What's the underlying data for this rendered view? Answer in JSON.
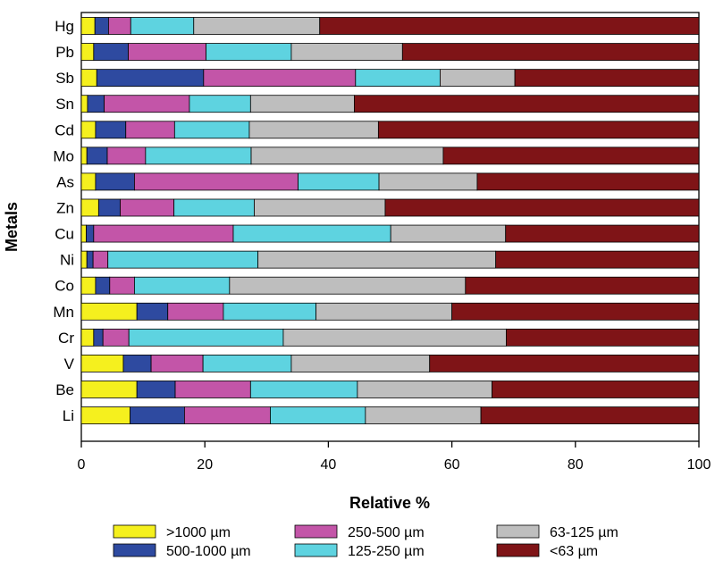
{
  "chart_data": {
    "type": "bar",
    "orientation": "horizontal",
    "stacked": true,
    "title": "",
    "xlabel": "Relative %",
    "ylabel": "Metals",
    "xlim": [
      0,
      100
    ],
    "xticks": [
      0,
      20,
      40,
      60,
      80,
      100
    ],
    "xtick_labels": [
      "0",
      "20",
      "40",
      "60",
      "80",
      "100"
    ],
    "categories": [
      "Hg",
      "Pb",
      "Sb",
      "Sn",
      "Cd",
      "Mo",
      "As",
      "Zn",
      "Cu",
      "Ni",
      "Co",
      "Mn",
      "Cr",
      "V",
      "Be",
      "Li"
    ],
    "series": [
      {
        "name": ">1000 µm",
        "color": "#f5f01e",
        "values": [
          2.2,
          2.0,
          2.5,
          1.0,
          2.3,
          0.9,
          2.3,
          2.8,
          0.8,
          0.9,
          2.3,
          9.0,
          2.0,
          6.8,
          9.0,
          7.9
        ]
      },
      {
        "name": "500-1000 µm",
        "color": "#2e4aa0",
        "values": [
          2.2,
          5.6,
          17.3,
          2.7,
          4.9,
          3.3,
          6.3,
          3.5,
          1.2,
          1.0,
          2.3,
          5.0,
          1.5,
          4.5,
          6.2,
          8.8
        ]
      },
      {
        "name": "250-500 µm",
        "color": "#c355a8",
        "values": [
          3.6,
          12.6,
          24.6,
          13.8,
          7.9,
          6.2,
          26.5,
          8.7,
          22.6,
          2.4,
          4.0,
          9.0,
          4.2,
          8.4,
          12.2,
          13.9
        ]
      },
      {
        "name": "125-250 µm",
        "color": "#5ed3e0",
        "values": [
          10.2,
          13.8,
          13.7,
          9.9,
          12.1,
          17.1,
          13.1,
          13.0,
          25.5,
          24.3,
          15.4,
          15.0,
          25.0,
          14.3,
          17.3,
          15.4
        ]
      },
      {
        "name": "63-125 µm",
        "color": "#bebebe",
        "values": [
          20.4,
          18.0,
          12.1,
          16.8,
          20.9,
          31.1,
          15.9,
          21.2,
          18.6,
          38.5,
          38.2,
          22.0,
          36.1,
          22.4,
          21.8,
          18.7
        ]
      },
      {
        "name": "<63 µm",
        "color": "#7f1417",
        "values": [
          61.4,
          48.0,
          29.8,
          55.8,
          51.9,
          41.4,
          35.9,
          50.8,
          31.3,
          32.9,
          37.8,
          40.0,
          31.2,
          43.6,
          33.5,
          35.3
        ]
      }
    ],
    "legend_position": "bottom",
    "legend_order": [
      ">1000 µm",
      "250-500 µm",
      "63-125 µm",
      "500-1000 µm",
      "125-250 µm",
      "<63 µm"
    ],
    "grid": false
  }
}
